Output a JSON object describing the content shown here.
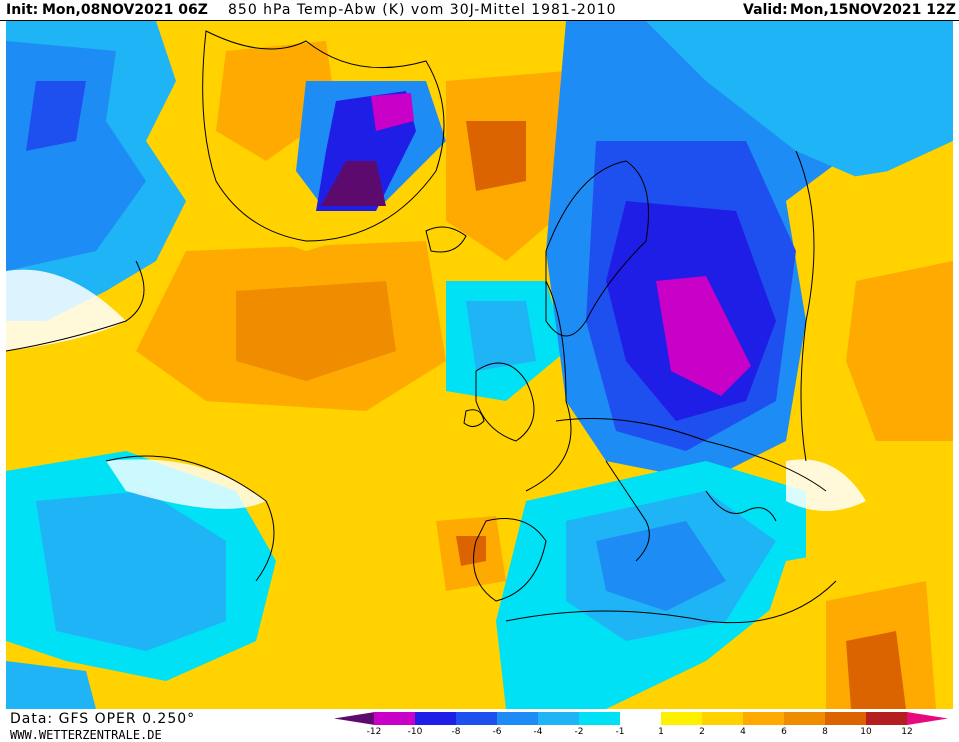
{
  "header": {
    "init_label": "Init:",
    "init_value": "Mon,08NOV2021 06Z",
    "title": "850 hPa Temp-Abw (K) vom 30J-Mittel 1981-2010",
    "valid_label": "Valid:",
    "valid_value": "Mon,15NOV2021 12Z"
  },
  "footer": {
    "data_label": "Data: GFS OPER 0.250°",
    "site": "WWW.WETTERZENTRALE.DE"
  },
  "legend": {
    "ticks": [
      "-12",
      "-10",
      "-8",
      "-6",
      "-4",
      "-2",
      "-1",
      "1",
      "2",
      "4",
      "6",
      "8",
      "10",
      "12"
    ],
    "colors": {
      "lt_-12": "#5c0a6e",
      "-12_-10": "#c800c8",
      "-10_-8": "#1e1ee6",
      "-8_-6": "#1e50f0",
      "-6_-4": "#1e8cf5",
      "-4_-2": "#1eb4f5",
      "-2_-1": "#00e1f5",
      "-1_1": "#ffffff",
      "1_2": "#fff000",
      "2_4": "#ffd200",
      "4_6": "#ffaa00",
      "6_8": "#f08c00",
      "8_10": "#dc6400",
      "10_12": "#b41e1e",
      "gt_12": "#e60a7d"
    }
  }
}
